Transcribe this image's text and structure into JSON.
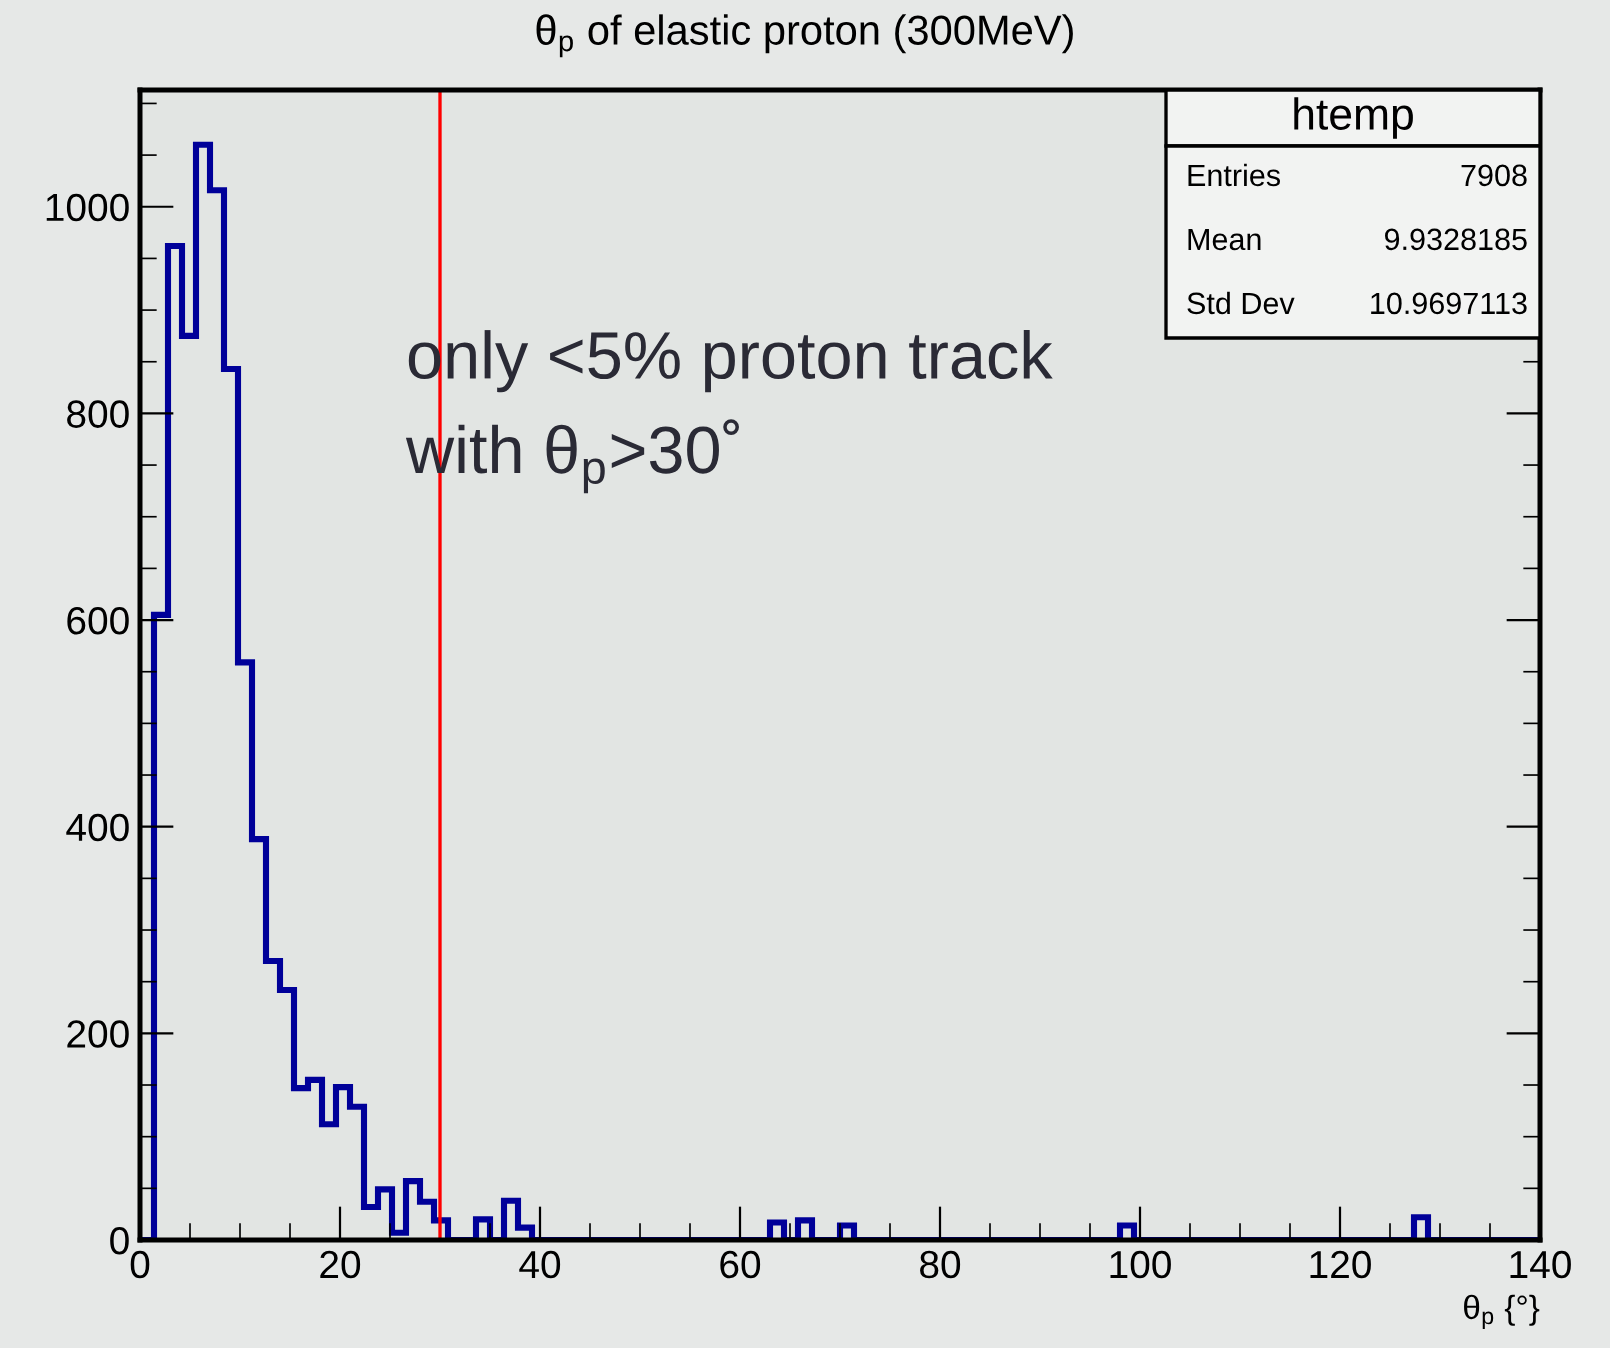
{
  "chart_data": {
    "type": "histogram",
    "title": "θ$_{p}$ of elastic proton (300MeV)",
    "xlabel": "θ$_{p}$ {°}",
    "bins": [
      0,
      1.4,
      2.8,
      4.2,
      5.6,
      7,
      8.4,
      9.8,
      11.2,
      12.6,
      14,
      15.4,
      16.8,
      18.2,
      19.6,
      21,
      22.4,
      23.8,
      25.2,
      26.6,
      28,
      29.4,
      30.8,
      32.2,
      33.6,
      35,
      36.4,
      37.8,
      39.2,
      40.6,
      42,
      43.4,
      44.8,
      46.2,
      47.6,
      49,
      50.4,
      51.8,
      53.2,
      54.6,
      56,
      57.4,
      58.8,
      60.2,
      61.6,
      63,
      64.4,
      65.8,
      67.2,
      68.6,
      70,
      71.4,
      72.8,
      74.2,
      75.6,
      77,
      78.4,
      79.8,
      81.2,
      82.6,
      84,
      85.4,
      86.8,
      88.2,
      89.6,
      91,
      92.4,
      93.8,
      95.2,
      96.6,
      98,
      99.4,
      100.8,
      102.2,
      103.6,
      105,
      106.4,
      107.8,
      109.2,
      110.6,
      112,
      113.4,
      114.8,
      116.2,
      117.6,
      119,
      120.4,
      121.8,
      123.2,
      124.6,
      126,
      127.4,
      128.8,
      130.2,
      131.6,
      133,
      134.4,
      135.8,
      137.2,
      138.6,
      140
    ],
    "values": [
      0,
      605,
      962,
      875,
      1060,
      1016,
      843,
      559,
      388,
      270,
      242,
      147,
      155,
      112,
      148,
      129,
      32,
      49,
      7,
      57,
      37,
      19,
      0,
      0,
      20,
      0,
      38,
      12,
      0,
      0,
      0,
      0,
      0,
      0,
      0,
      0,
      0,
      0,
      0,
      0,
      0,
      0,
      0,
      0,
      0,
      17,
      0,
      19,
      0,
      0,
      14,
      0,
      0,
      0,
      0,
      0,
      0,
      0,
      0,
      0,
      0,
      0,
      0,
      0,
      0,
      0,
      0,
      0,
      0,
      0,
      14,
      0,
      0,
      0,
      0,
      0,
      0,
      0,
      0,
      0,
      0,
      0,
      0,
      0,
      0,
      0,
      0,
      0,
      0,
      0,
      0,
      22,
      0,
      0,
      0,
      0,
      0,
      0,
      0,
      0
    ],
    "color": "#000099",
    "xlim": [
      0,
      140
    ],
    "xticks": [
      0,
      20,
      40,
      60,
      80,
      100,
      120,
      140
    ],
    "ylim": [
      0,
      1113
    ],
    "yticks": [
      0,
      200,
      400,
      600,
      800,
      1000
    ],
    "ref_lines": [
      {
        "axis": "x",
        "value": 30,
        "color": "#ff0000"
      }
    ],
    "annotations": [
      "only <5% proton track\nwith θ$_{p}$>30˚",
      "htemp",
      "Entries",
      "7908",
      "Mean",
      "9.9328185",
      "Std Dev",
      "10.9697113"
    ],
    "grid": false
  }
}
